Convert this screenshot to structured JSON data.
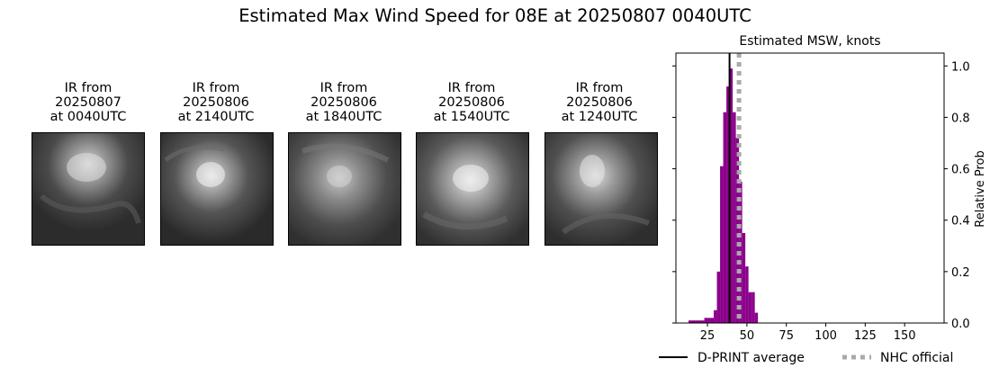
{
  "figure": {
    "title": "Estimated Max Wind Speed for 08E at 20250807 0040UTC"
  },
  "ir_panels": [
    {
      "line1": "IR from",
      "line2": "20250807",
      "line3": "at 0040UTC"
    },
    {
      "line1": "IR from",
      "line2": "20250806",
      "line3": "at 2140UTC"
    },
    {
      "line1": "IR from",
      "line2": "20250806",
      "line3": "at 1840UTC"
    },
    {
      "line1": "IR from",
      "line2": "20250806",
      "line3": "at 1540UTC"
    },
    {
      "line1": "IR from",
      "line2": "20250806",
      "line3": "at 1240UTC"
    }
  ],
  "chart_data": {
    "type": "bar",
    "title": "Estimated MSW, knots",
    "xlabel": "",
    "ylabel": "Relative Prob",
    "xlim": [
      5,
      175
    ],
    "ylim": [
      0,
      1.05
    ],
    "x_ticks": [
      25,
      50,
      75,
      100,
      125,
      150
    ],
    "y_ticks": [
      0.0,
      0.2,
      0.4,
      0.6,
      0.8,
      1.0
    ],
    "y_tick_labels": [
      "0.0",
      "0.2",
      "0.4",
      "0.6",
      "0.8",
      "1.0"
    ],
    "y_axis_side": "right",
    "grid": false,
    "bar_width": 2,
    "bar_color": "#8b008b",
    "x": [
      14,
      16,
      18,
      20,
      22,
      24,
      26,
      28,
      30,
      32,
      34,
      36,
      38,
      40,
      42,
      44,
      46,
      48,
      50,
      52,
      54,
      56
    ],
    "values": [
      0.01,
      0.01,
      0.01,
      0.01,
      0.01,
      0.02,
      0.02,
      0.02,
      0.05,
      0.2,
      0.61,
      0.82,
      0.92,
      0.99,
      0.82,
      0.72,
      0.55,
      0.35,
      0.22,
      0.12,
      0.12,
      0.04
    ],
    "dprint_average": 39,
    "nhc_official": 45,
    "legend": [
      {
        "label": "D-PRINT average",
        "style": "solid",
        "color": "#000000"
      },
      {
        "label": "NHC official",
        "style": "dotted",
        "color": "#aaaaaa"
      }
    ],
    "legend_position": "below"
  }
}
